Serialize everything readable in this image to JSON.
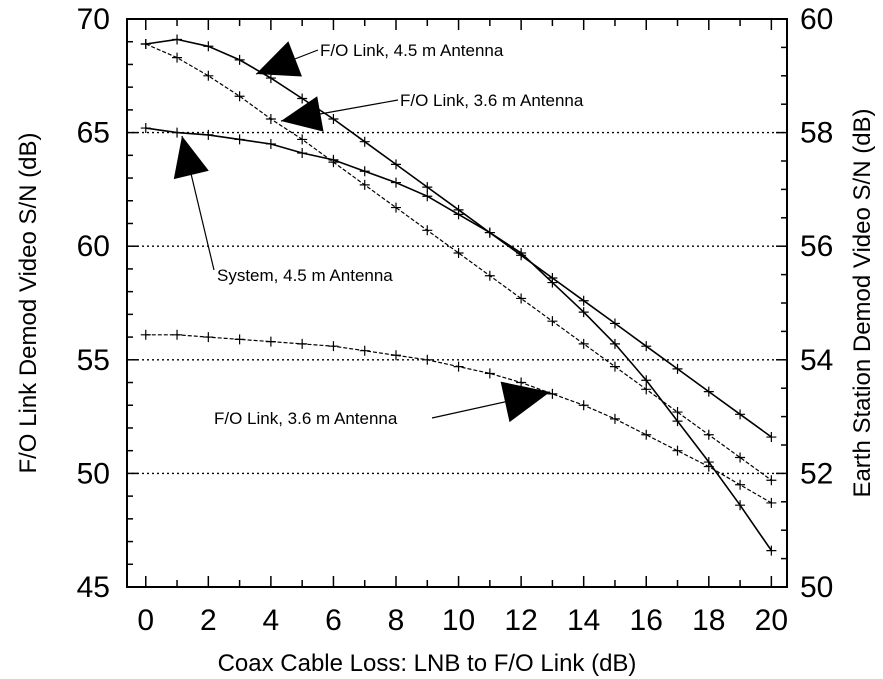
{
  "chart_data": {
    "type": "line",
    "xlabel": "Coax Cable Loss: LNB to F/O Link (dB)",
    "ylabel": "F/O Link Demod Video S/N (dB)",
    "y2label": "Earth Station Demod Video S/N (dB)",
    "xlim": [
      -0.6,
      20.5
    ],
    "ylim": [
      45,
      70
    ],
    "y2lim": [
      50,
      60
    ],
    "xticks": [
      0,
      2,
      4,
      6,
      8,
      10,
      12,
      14,
      16,
      18,
      20
    ],
    "yticks": [
      45,
      50,
      55,
      60,
      65,
      70
    ],
    "y2ticks": [
      50,
      52,
      54,
      56,
      58,
      60
    ],
    "grid": "dotted horizontal at y = 50, 55, 60, 65",
    "series": [
      {
        "axis": "left",
        "style": "solid",
        "x": [
          0,
          1,
          2,
          3,
          4,
          5,
          6,
          7,
          8,
          9,
          10,
          11,
          12,
          13,
          14,
          15,
          16,
          17,
          18,
          19,
          20
        ],
        "values": [
          68.9,
          69.1,
          68.8,
          68.2,
          67.4,
          66.5,
          65.6,
          64.6,
          63.6,
          62.6,
          61.6,
          60.6,
          59.6,
          58.6,
          57.6,
          56.6,
          55.6,
          54.6,
          53.6,
          52.6,
          51.6
        ]
      },
      {
        "axis": "left",
        "style": "dashed",
        "x": [
          0,
          1,
          2,
          3,
          4,
          5,
          6,
          7,
          8,
          9,
          10,
          11,
          12,
          13,
          14,
          15,
          16,
          17,
          18,
          19,
          20
        ],
        "values": [
          68.9,
          68.3,
          67.5,
          66.6,
          65.6,
          64.7,
          63.7,
          62.7,
          61.7,
          60.7,
          59.7,
          58.7,
          57.7,
          56.7,
          55.7,
          54.7,
          53.7,
          52.7,
          51.7,
          50.7,
          49.7
        ]
      },
      {
        "axis": "left",
        "style": "solid",
        "x": [
          0,
          1,
          2,
          3,
          4,
          5,
          6,
          7,
          8,
          9,
          10,
          11,
          12,
          13,
          14,
          15,
          16,
          17,
          18,
          19,
          20
        ],
        "values": [
          65.2,
          65.0,
          64.9,
          64.7,
          64.5,
          64.1,
          63.8,
          63.3,
          62.8,
          62.2,
          61.4,
          60.6,
          59.7,
          58.4,
          57.1,
          55.7,
          54.1,
          52.3,
          50.5,
          48.6,
          46.6
        ]
      },
      {
        "axis": "left",
        "style": "dashed",
        "x": [
          0,
          1,
          2,
          3,
          4,
          5,
          6,
          7,
          8,
          9,
          10,
          11,
          12,
          13,
          14,
          15,
          16,
          17,
          18,
          19,
          20
        ],
        "values": [
          56.1,
          56.1,
          56.0,
          55.9,
          55.8,
          55.7,
          55.6,
          55.4,
          55.2,
          55.0,
          54.7,
          54.4,
          54.0,
          53.5,
          53.0,
          52.4,
          51.7,
          51.0,
          50.3,
          49.5,
          48.7
        ]
      }
    ],
    "annotations": [
      {
        "text": "F/O Link, 4.5 m Antenna"
      },
      {
        "text": "F/O Link, 3.6 m Antenna"
      },
      {
        "text": "System, 4.5 m Antenna"
      },
      {
        "text": "F/O Link, 3.6 m Antenna"
      }
    ]
  }
}
